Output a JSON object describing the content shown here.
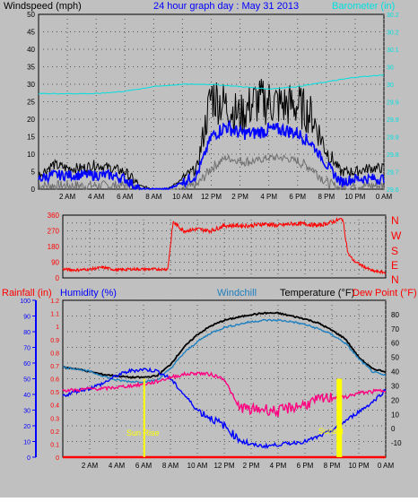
{
  "header": {
    "left_label": "Windspeed (mph)",
    "center_label": "24 hour graph day : May 31 2013",
    "right_label": "Barometer (in)"
  },
  "mid_panel": {
    "direction_letters": [
      "N",
      "W",
      "S",
      "E",
      "N"
    ]
  },
  "lower_header": {
    "rainfall_label": "Rainfall (in)",
    "humidity_label": "Humidity (%)",
    "windchill_label": "Windchill",
    "temperature_label": "Temperature (°F)",
    "dewpoint_label": "Dew Point (°F)"
  },
  "annotations": {
    "sunrise": "Sun Rise",
    "sunset": "Sunset"
  },
  "colors": {
    "background": "#c0c0c0",
    "plot_bg": "#c0c0c0",
    "wind_gust": "#000000",
    "wind_avg": "#0000ff",
    "wind_min": "#707070",
    "barometer": "#00e0e0",
    "direction": "#ff0000",
    "humidity": "#0000ff",
    "dewpoint": "#ff0080",
    "temperature": "#000000",
    "windchill": "#2080c0",
    "rainfall": "#ff0000",
    "sun_marker": "#ffff00"
  },
  "chart_data": [
    {
      "type": "line",
      "title": "24 hour graph day : May 31 2013",
      "x_ticks": [
        "2 AM",
        "4 AM",
        "6 AM",
        "8 AM",
        "10 AM",
        "12 PM",
        "2 PM",
        "4 PM",
        "6 PM",
        "8 PM",
        "10 PM",
        "0 AM"
      ],
      "xlim": [
        0,
        24
      ],
      "left_axis": {
        "label": "Windspeed (mph)",
        "ylim": [
          0,
          50
        ],
        "ticks": [
          "0",
          "5",
          "10",
          "15",
          "20",
          "25",
          "30",
          "35",
          "40",
          "45",
          "50"
        ]
      },
      "right_axis": {
        "label": "Barometer (in)",
        "ylim": [
          29.6,
          30.35
        ],
        "ticks": [
          "29.6",
          "29.7",
          "29.8",
          "29.9",
          "29.9",
          "29.9",
          "30",
          "30",
          "30.1",
          "30.2",
          "30.2"
        ]
      },
      "series": [
        {
          "name": "Wind gust",
          "x": [
            0,
            1,
            2,
            3,
            4,
            5,
            6,
            7,
            8,
            9,
            10,
            11,
            12,
            13,
            14,
            15,
            16,
            17,
            18,
            19,
            20,
            21,
            22,
            23,
            24
          ],
          "y": [
            4,
            7,
            6,
            6,
            7,
            6,
            5,
            1,
            0,
            0,
            3,
            6,
            27,
            24,
            21,
            25,
            25,
            24,
            24,
            21,
            11,
            5,
            5,
            6,
            6
          ]
        },
        {
          "name": "Wind average",
          "x": [
            0,
            1,
            2,
            3,
            4,
            5,
            6,
            7,
            8,
            9,
            10,
            11,
            12,
            13,
            14,
            15,
            16,
            17,
            18,
            19,
            20,
            21,
            22,
            23,
            24
          ],
          "y": [
            3,
            4,
            4,
            4,
            4,
            4,
            3,
            0,
            0,
            0,
            2,
            4,
            15,
            18,
            16,
            16,
            17,
            17,
            16,
            13,
            7,
            2,
            3,
            3,
            3
          ]
        },
        {
          "name": "Wind minimum",
          "x": [
            0,
            1,
            2,
            3,
            4,
            5,
            6,
            7,
            8,
            9,
            10,
            11,
            12,
            13,
            14,
            15,
            16,
            17,
            18,
            19,
            20,
            21,
            22,
            23,
            24
          ],
          "y": [
            1,
            1,
            1,
            1,
            1,
            1,
            1,
            0,
            0,
            0,
            0,
            1,
            6,
            9,
            8,
            8,
            9,
            9,
            8,
            6,
            2,
            0,
            1,
            1,
            1
          ]
        },
        {
          "name": "Barometer",
          "axis": "right",
          "x": [
            0,
            2,
            4,
            6,
            8,
            10,
            12,
            14,
            16,
            18,
            20,
            22,
            24
          ],
          "y": [
            30.01,
            30.01,
            30.01,
            30.02,
            30.04,
            30.05,
            30.05,
            30.04,
            30.03,
            30.04,
            30.06,
            30.08,
            30.09
          ]
        }
      ]
    },
    {
      "type": "scatter",
      "x_ticks": [],
      "xlim": [
        0,
        24
      ],
      "left_axis": {
        "label": "",
        "ylim": [
          0,
          360
        ],
        "ticks": [
          "0",
          "45",
          "90",
          "135",
          "180",
          "225",
          "270",
          "315",
          "360"
        ]
      },
      "series": [
        {
          "name": "Wind direction",
          "x": [
            0,
            1,
            2,
            3,
            4,
            5,
            6,
            7,
            7.8,
            8.2,
            9,
            10,
            11,
            12,
            13,
            14,
            15,
            16,
            17,
            18,
            19,
            20,
            20.8,
            21.2,
            21.6,
            22,
            23,
            24
          ],
          "y": [
            50,
            45,
            50,
            60,
            45,
            50,
            50,
            50,
            50,
            320,
            270,
            280,
            270,
            300,
            300,
            300,
            310,
            300,
            310,
            310,
            300,
            320,
            340,
            140,
            100,
            80,
            40,
            30
          ]
        }
      ]
    },
    {
      "type": "line",
      "xlim": [
        0,
        24
      ],
      "left_axis": {
        "label": "Humidity (%)",
        "ylim": [
          0,
          100
        ],
        "ticks": [
          "0",
          "10",
          "20",
          "30",
          "40",
          "50",
          "60",
          "70",
          "80",
          "90",
          "100"
        ]
      },
      "rain_axis": {
        "label": "Rainfall (in)",
        "ylim": [
          0,
          1.2
        ],
        "ticks": [
          "0",
          "0.1",
          "0.2",
          "0.3",
          "0.4",
          "0.5",
          "0.6",
          "0.7",
          "0.8",
          "0.9",
          "1",
          "1.1",
          "1.2"
        ]
      },
      "right_axis": {
        "label": "Temperature (°F)",
        "ylim": [
          -20,
          90
        ],
        "ticks": [
          "-10",
          "0",
          "10",
          "20",
          "30",
          "40",
          "50",
          "60",
          "70",
          "80"
        ]
      },
      "series": [
        {
          "name": "Temperature",
          "axis": "right",
          "x": [
            0,
            1,
            2,
            3,
            4,
            5,
            6,
            7,
            8,
            9,
            10,
            11,
            12,
            13,
            14,
            15,
            16,
            17,
            18,
            19,
            20,
            21,
            22,
            23,
            24
          ],
          "y": [
            43,
            42,
            40,
            38,
            37,
            36,
            36,
            37,
            45,
            57,
            66,
            72,
            76,
            78,
            80,
            81,
            81,
            79,
            77,
            74,
            69,
            63,
            50,
            42,
            40
          ]
        },
        {
          "name": "Windchill",
          "axis": "right",
          "x": [
            0,
            1,
            2,
            3,
            4,
            5,
            6,
            7,
            8,
            9,
            10,
            11,
            12,
            13,
            14,
            15,
            16,
            17,
            18,
            19,
            20,
            21,
            22,
            23,
            24
          ],
          "y": [
            43,
            42,
            40,
            37,
            34,
            33,
            33,
            34,
            42,
            53,
            61,
            67,
            71,
            73,
            75,
            76,
            76,
            75,
            73,
            70,
            66,
            60,
            49,
            40,
            37
          ]
        },
        {
          "name": "Humidity",
          "x": [
            0,
            1,
            2,
            3,
            4,
            5,
            6,
            7,
            8,
            9,
            10,
            11,
            12,
            13,
            14,
            15,
            16,
            17,
            18,
            19,
            20,
            21,
            22,
            23,
            24
          ],
          "y": [
            39,
            42,
            44,
            47,
            52,
            55,
            56,
            55,
            50,
            40,
            30,
            25,
            20,
            12,
            8,
            7,
            8,
            9,
            10,
            13,
            17,
            23,
            29,
            35,
            43
          ]
        },
        {
          "name": "Dew Point",
          "axis": "right",
          "x": [
            0,
            1,
            2,
            3,
            4,
            5,
            6,
            7,
            8,
            9,
            10,
            11,
            12,
            13,
            14,
            15,
            16,
            17,
            18,
            19,
            20,
            21,
            22,
            23,
            24
          ],
          "y": [
            27,
            27,
            28,
            28,
            29,
            30,
            31,
            33,
            36,
            38,
            39,
            38,
            35,
            16,
            13,
            14,
            12,
            15,
            17,
            20,
            22,
            22,
            25,
            26,
            27
          ]
        },
        {
          "name": "Rainfall",
          "axis": "rain",
          "x": [
            0,
            24
          ],
          "y": [
            0,
            0
          ]
        }
      ],
      "markers": [
        {
          "name": "Sun Rise",
          "x": 6.05,
          "height_fraction": 0.5
        },
        {
          "name": "Sunset",
          "x": 20.55,
          "height_fraction": 0.5
        }
      ]
    }
  ]
}
